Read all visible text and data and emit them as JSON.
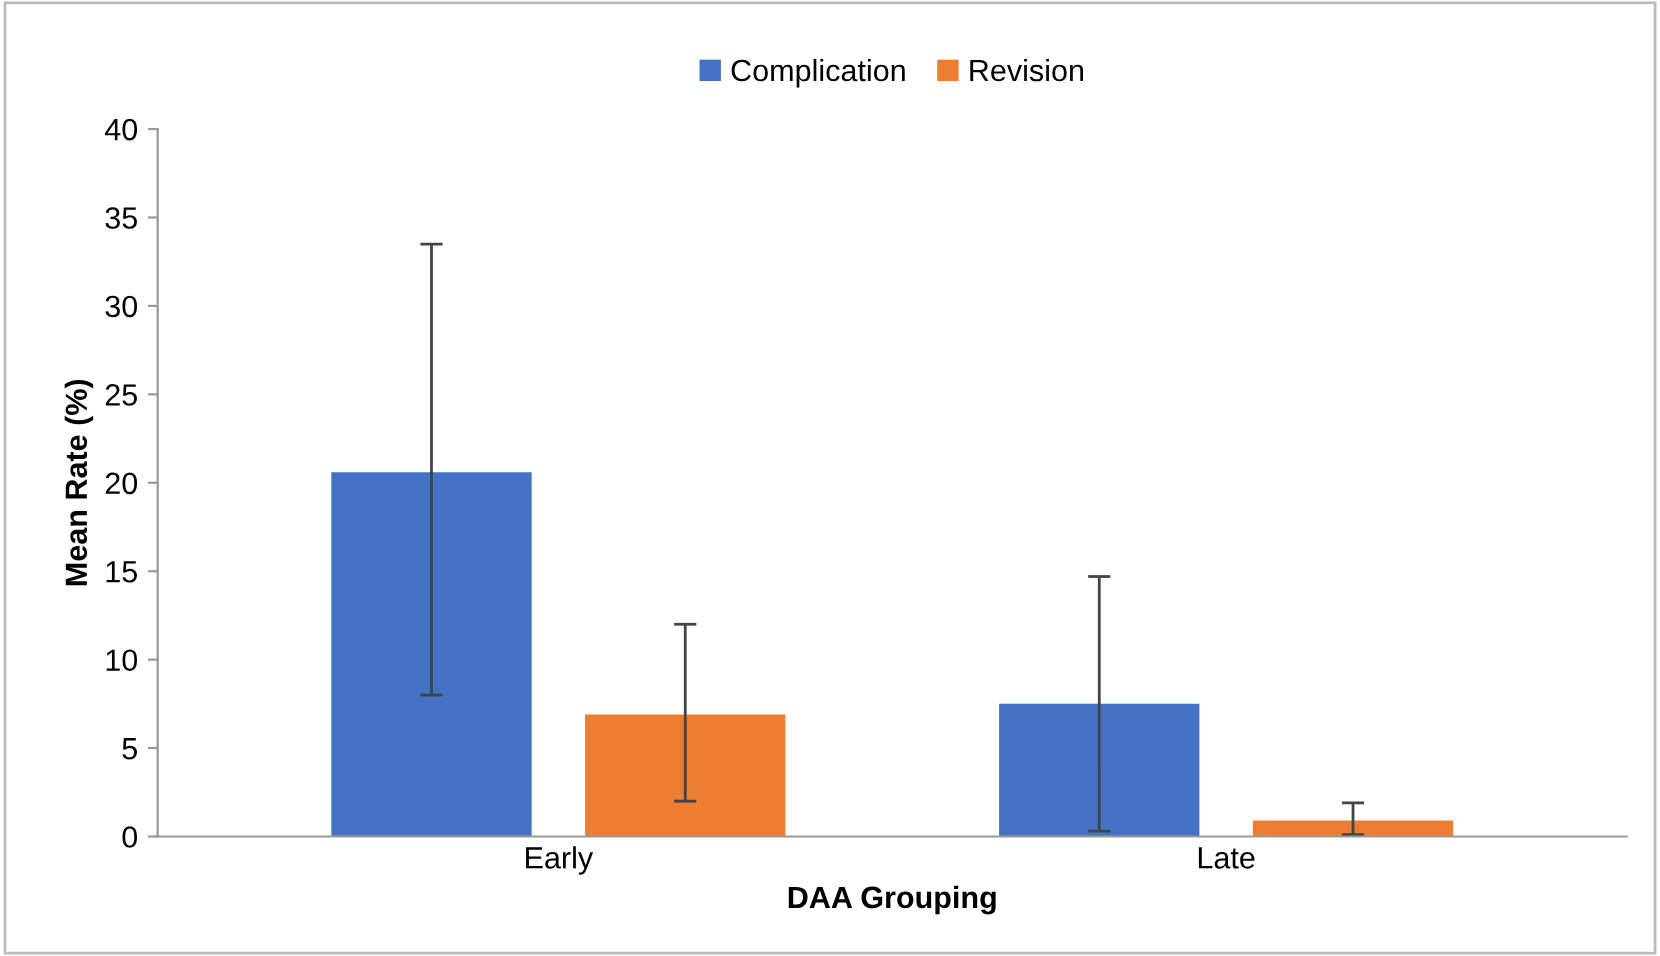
{
  "chart_data": {
    "type": "bar",
    "xlabel": "DAA Grouping",
    "ylabel": "Mean Rate (%)",
    "categories": [
      "Early",
      "Late"
    ],
    "series": [
      {
        "name": "Complication",
        "color": "#4472c4",
        "values": [
          20.6,
          7.5
        ],
        "errors": [
          [
            8.0,
            33.5
          ],
          [
            0.3,
            14.7
          ]
        ]
      },
      {
        "name": "Revision",
        "color": "#ed7d31",
        "values": [
          6.9,
          0.9
        ],
        "errors": [
          [
            2.0,
            12.0
          ],
          [
            0.1,
            1.9
          ]
        ]
      }
    ],
    "ylim": [
      0,
      40
    ],
    "yticks": [
      0,
      5,
      10,
      15,
      20,
      25,
      30,
      35,
      40
    ],
    "grid": false,
    "legend": "top"
  }
}
